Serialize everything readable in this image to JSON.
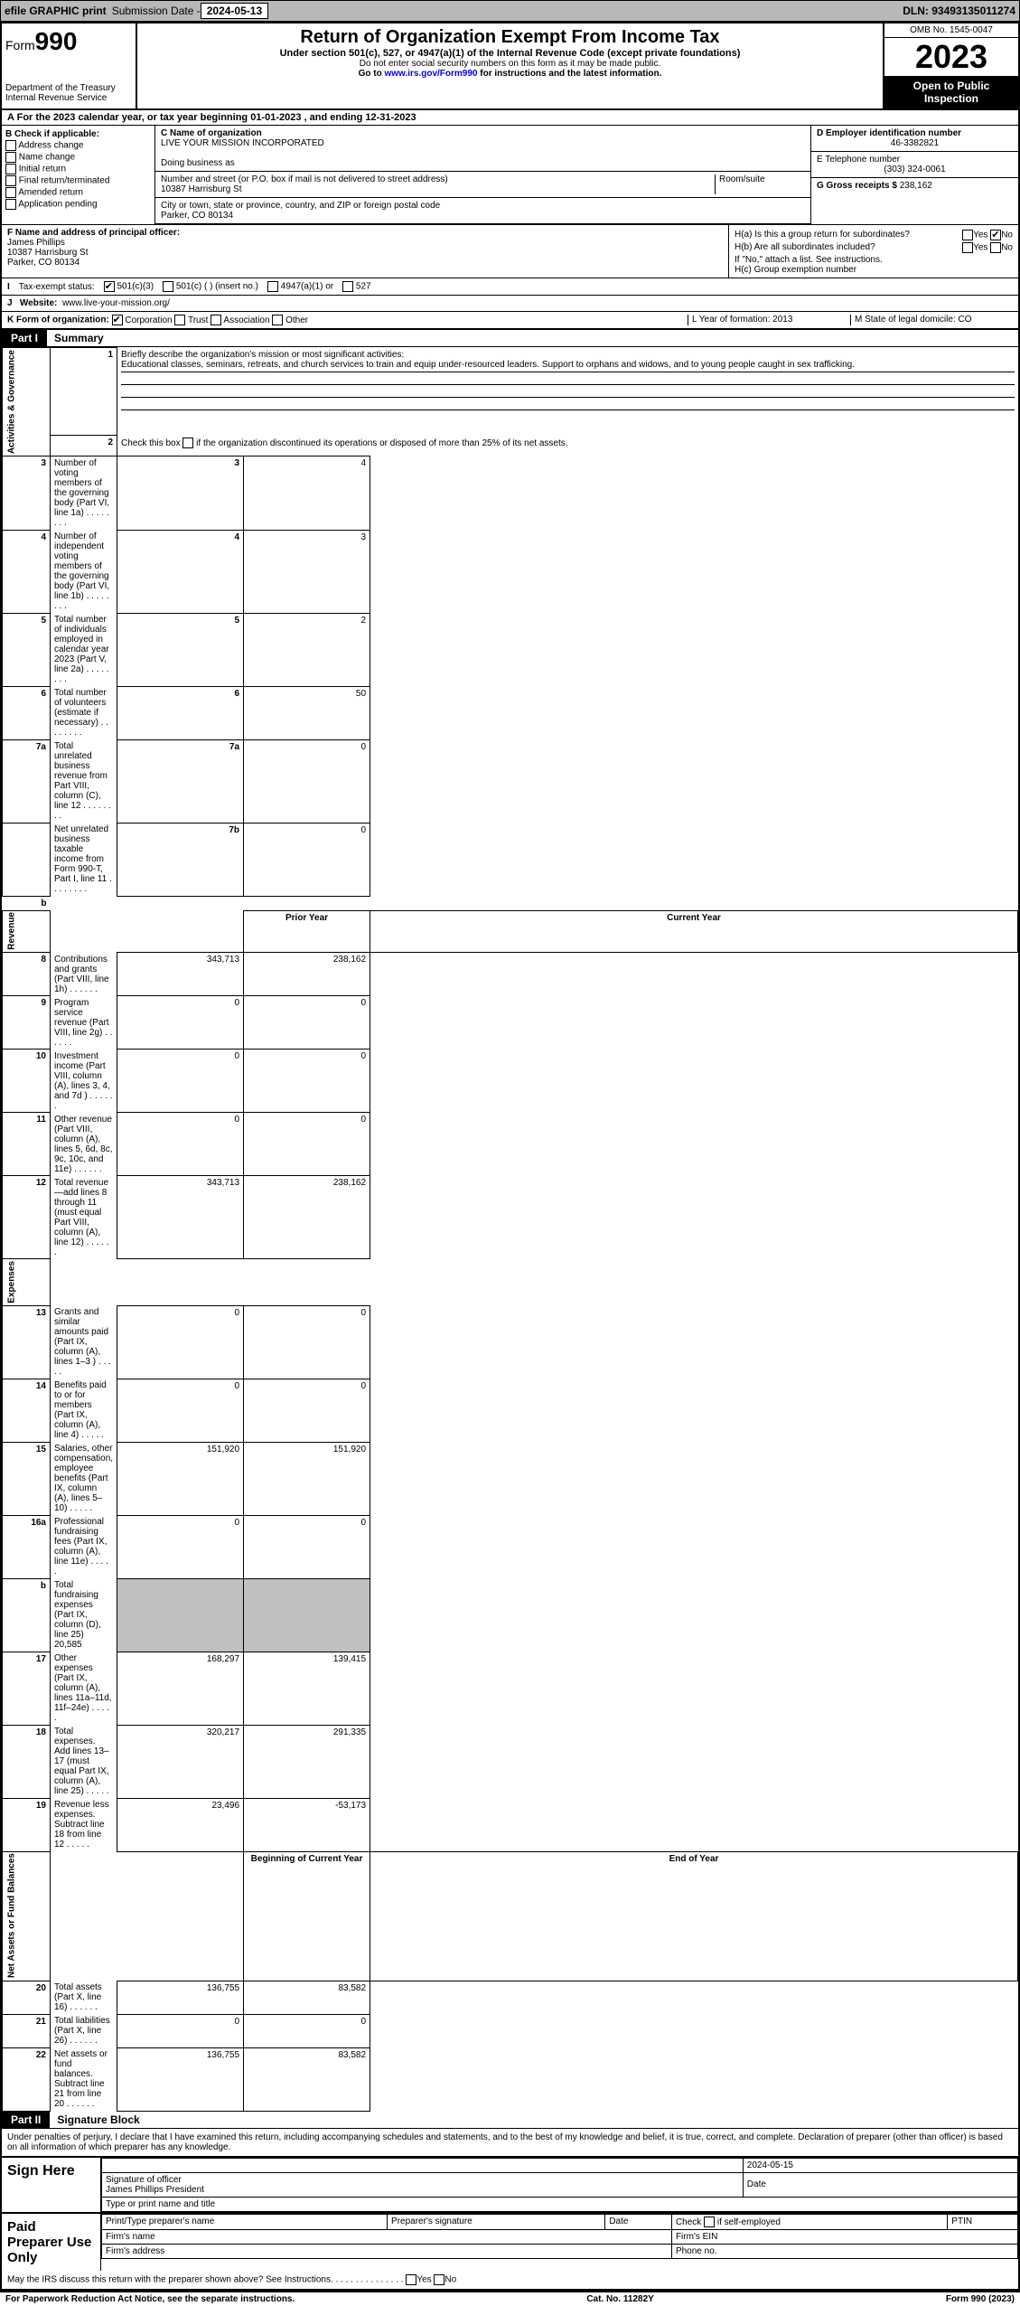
{
  "topbar": {
    "efile": "efile GRAPHIC print",
    "sub_lbl": "Submission Date - ",
    "sub_date": "2024-05-13",
    "dln_lbl": "DLN: ",
    "dln": "93493135011274"
  },
  "hdr": {
    "form_prefix": "Form",
    "form_no": "990",
    "title": "Return of Organization Exempt From Income Tax",
    "sub": "Under section 501(c), 527, or 4947(a)(1) of the Internal Revenue Code (except private foundations)",
    "note1": "Do not enter social security numbers on this form as it may be made public.",
    "note2_pre": "Go to ",
    "note2_link": "www.irs.gov/Form990",
    "note2_post": " for instructions and the latest information.",
    "dept": "Department of the Treasury\nInternal Revenue Service",
    "omb": "OMB No. 1545-0047",
    "year": "2023",
    "insp": "Open to Public Inspection"
  },
  "rowA": "For the 2023 calendar year, or tax year beginning 01-01-2023   , and ending 12-31-2023",
  "B": {
    "hdr": "B Check if applicable:",
    "items": [
      "Address change",
      "Name change",
      "Initial return",
      "Final return/terminated",
      "Amended return",
      "Application pending"
    ]
  },
  "C": {
    "name_lbl": "C Name of organization",
    "name": "LIVE YOUR MISSION INCORPORATED",
    "dba_lbl": "Doing business as",
    "dba": "",
    "addr_lbl": "Number and street (or P.O. box if mail is not delivered to street address)",
    "room_lbl": "Room/suite",
    "addr": "10387 Harrisburg St",
    "city_lbl": "City or town, state or province, country, and ZIP or foreign postal code",
    "city": "Parker, CO  80134"
  },
  "D": {
    "lbl": "D Employer identification number",
    "val": "46-3382821"
  },
  "E": {
    "lbl": "E Telephone number",
    "val": "(303) 324-0061"
  },
  "G": {
    "lbl": "G Gross receipts $ ",
    "val": "238,162"
  },
  "F": {
    "lbl": "F  Name and address of principal officer:",
    "val": "James Phillips\n10387 Harrisburg St\nParker, CO  80134"
  },
  "H": {
    "a": "H(a)  Is this a group return for subordinates?",
    "a_yes": "Yes",
    "a_no": "No",
    "b": "H(b)  Are all subordinates included?",
    "note": "If \"No,\" attach a list. See instructions.",
    "c": "H(c)  Group exemption number"
  },
  "I": {
    "lbl": "Tax-exempt status:",
    "o1": "501(c)(3)",
    "o2": "501(c) (  ) (insert no.)",
    "o3": "4947(a)(1) or",
    "o4": "527"
  },
  "J": {
    "lbl": "Website:",
    "val": "www.live-your-mission.org/"
  },
  "K": {
    "lbl": "K Form of organization:",
    "o": [
      "Corporation",
      "Trust",
      "Association",
      "Other"
    ]
  },
  "L": {
    "lbl": "L Year of formation: ",
    "val": "2013"
  },
  "M": {
    "lbl": "M State of legal domicile: ",
    "val": "CO"
  },
  "part1": {
    "lbl": "Part I",
    "ttl": "Summary"
  },
  "sum": {
    "gov_side": "Activities & Governance",
    "l1_lbl": "Briefly describe the organization's mission or most significant activities:",
    "l1": "Educational classes, seminars, retreats, and church services to train and equip under-resourced leaders. Support to orphans and widows, and to young people caught in sex trafficking.",
    "l2": "Check this box      if the organization discontinued its operations or disposed of more than 25% of its net assets.",
    "rows_gov": [
      {
        "n": "3",
        "t": "Number of voting members of the governing body (Part VI, line 1a)",
        "k": "3",
        "v": "4"
      },
      {
        "n": "4",
        "t": "Number of independent voting members of the governing body (Part VI, line 1b)",
        "k": "4",
        "v": "3"
      },
      {
        "n": "5",
        "t": "Total number of individuals employed in calendar year 2023 (Part V, line 2a)",
        "k": "5",
        "v": "2"
      },
      {
        "n": "6",
        "t": "Total number of volunteers (estimate if necessary)",
        "k": "6",
        "v": "50"
      },
      {
        "n": "7a",
        "t": "Total unrelated business revenue from Part VIII, column (C), line 12",
        "k": "7a",
        "v": "0"
      },
      {
        "n": "",
        "t": "Net unrelated business taxable income from Form 990-T, Part I, line 11",
        "k": "7b",
        "v": "0"
      }
    ],
    "rev_side": "Revenue",
    "col_prior": "Prior Year",
    "col_curr": "Current Year",
    "rows_rev": [
      {
        "n": "8",
        "t": "Contributions and grants (Part VIII, line 1h)",
        "p": "343,713",
        "c": "238,162"
      },
      {
        "n": "9",
        "t": "Program service revenue (Part VIII, line 2g)",
        "p": "0",
        "c": "0"
      },
      {
        "n": "10",
        "t": "Investment income (Part VIII, column (A), lines 3, 4, and 7d )",
        "p": "0",
        "c": "0"
      },
      {
        "n": "11",
        "t": "Other revenue (Part VIII, column (A), lines 5, 6d, 8c, 9c, 10c, and 11e)",
        "p": "0",
        "c": "0"
      },
      {
        "n": "12",
        "t": "Total revenue—add lines 8 through 11 (must equal Part VIII, column (A), line 12)",
        "p": "343,713",
        "c": "238,162"
      }
    ],
    "exp_side": "Expenses",
    "rows_exp": [
      {
        "n": "13",
        "t": "Grants and similar amounts paid (Part IX, column (A), lines 1–3 )",
        "p": "0",
        "c": "0"
      },
      {
        "n": "14",
        "t": "Benefits paid to or for members (Part IX, column (A), line 4)",
        "p": "0",
        "c": "0"
      },
      {
        "n": "15",
        "t": "Salaries, other compensation, employee benefits (Part IX, column (A), lines 5–10)",
        "p": "151,920",
        "c": "151,920"
      },
      {
        "n": "16a",
        "t": "Professional fundraising fees (Part IX, column (A), line 11e)",
        "p": "0",
        "c": "0"
      },
      {
        "n": "b",
        "t": "Total fundraising expenses (Part IX, column (D), line 25) 20,585",
        "p": "",
        "c": "",
        "gray": true
      },
      {
        "n": "17",
        "t": "Other expenses (Part IX, column (A), lines 11a–11d, 11f–24e)",
        "p": "168,297",
        "c": "139,415"
      },
      {
        "n": "18",
        "t": "Total expenses. Add lines 13–17 (must equal Part IX, column (A), line 25)",
        "p": "320,217",
        "c": "291,335"
      },
      {
        "n": "19",
        "t": "Revenue less expenses. Subtract line 18 from line 12",
        "p": "23,496",
        "c": "-53,173"
      }
    ],
    "na_side": "Net Assets or Fund Balances",
    "col_beg": "Beginning of Current Year",
    "col_end": "End of Year",
    "rows_na": [
      {
        "n": "20",
        "t": "Total assets (Part X, line 16)",
        "p": "136,755",
        "c": "83,582"
      },
      {
        "n": "21",
        "t": "Total liabilities (Part X, line 26)",
        "p": "0",
        "c": "0"
      },
      {
        "n": "22",
        "t": "Net assets or fund balances. Subtract line 21 from line 20",
        "p": "136,755",
        "c": "83,582"
      }
    ]
  },
  "part2": {
    "lbl": "Part II",
    "ttl": "Signature Block",
    "decl": "Under penalties of perjury, I declare that I have examined this return, including accompanying schedules and statements, and to the best of my knowledge and belief, it is true, correct, and complete. Declaration of preparer (other than officer) is based on all information of which preparer has any knowledge.",
    "sign_here": "Sign Here",
    "sig_date": "2024-05-15",
    "sig_off": "Signature of officer",
    "sig_name": "James Phillips  President",
    "sig_ttl": "Type or print name and title",
    "paid": "Paid Preparer Use Only",
    "pname": "Print/Type preparer's name",
    "psig": "Preparer's signature",
    "pdate": "Date",
    "pself": "Check       if self-employed",
    "ptin": "PTIN",
    "fname": "Firm's name",
    "fein": "Firm's EIN",
    "faddr": "Firm's address",
    "fphone": "Phone no.",
    "discuss": "May the IRS discuss this return with the preparer shown above? See Instructions.",
    "yes": "Yes",
    "no": "No"
  },
  "ftr": {
    "l": "For Paperwork Reduction Act Notice, see the separate instructions.",
    "c": "Cat. No. 11282Y",
    "r": "Form 990 (2023)"
  }
}
